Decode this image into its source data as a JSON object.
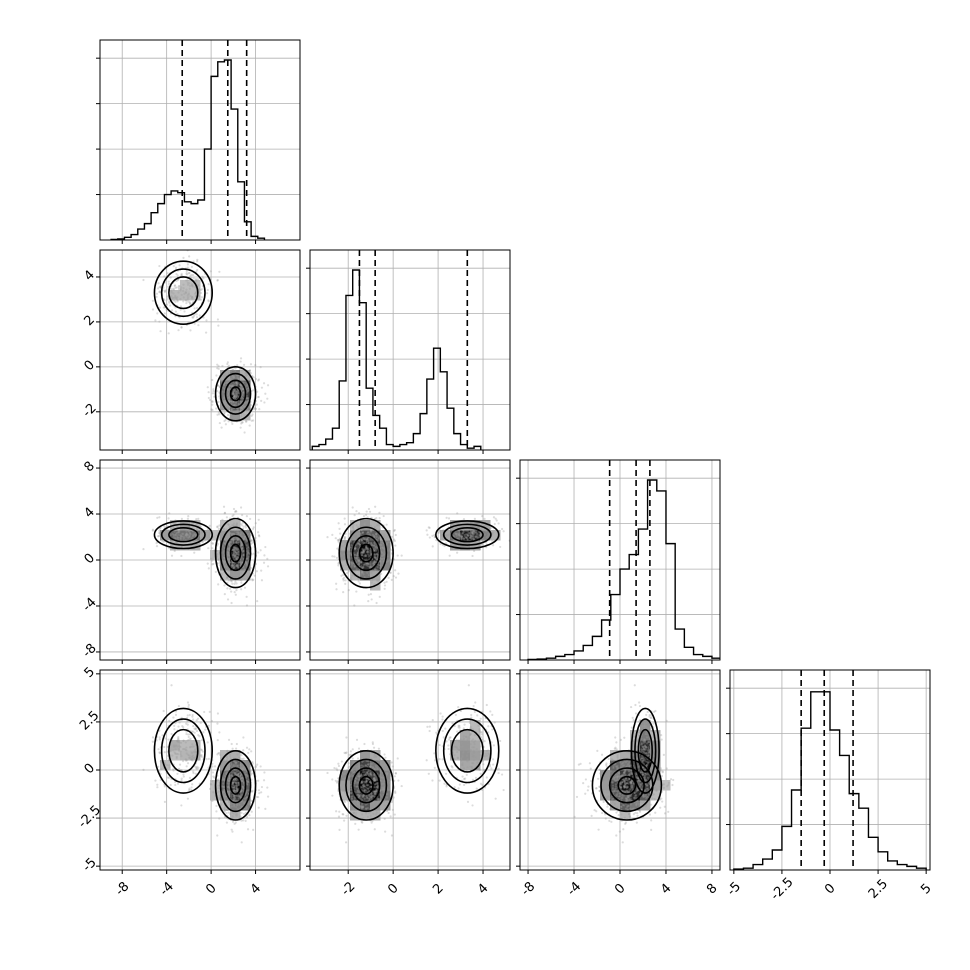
{
  "chart_data": {
    "type": "corner",
    "parameters": 4,
    "axes": [
      {
        "range": [
          -10,
          8
        ],
        "ticks": [
          -8,
          -4,
          0,
          4
        ]
      },
      {
        "range": [
          -3.7,
          5.2
        ],
        "ticks": [
          -2,
          0,
          2,
          4
        ]
      },
      {
        "range": [
          -8.7,
          8.7
        ],
        "ticks": [
          -8,
          -4,
          0,
          4,
          8
        ]
      },
      {
        "range": [
          -5.2,
          5.2
        ],
        "ticks": [
          -5.0,
          -2.5,
          0.0,
          2.5,
          5.0
        ]
      }
    ],
    "diagonal": [
      {
        "bin_start": -9,
        "bin_width": 0.6,
        "counts": [
          0.003,
          0.006,
          0.015,
          0.03,
          0.06,
          0.09,
          0.15,
          0.2,
          0.25,
          0.27,
          0.26,
          0.21,
          0.2,
          0.22,
          0.5,
          0.9,
          0.98,
          0.99,
          0.72,
          0.32,
          0.1,
          0.02,
          0.01
        ],
        "quantiles": [
          -2.6,
          1.5,
          3.2
        ],
        "ylim": [
          0,
          1.1
        ]
      },
      {
        "bin_start": -3.6,
        "bin_width": 0.3,
        "counts": [
          0.02,
          0.03,
          0.06,
          0.12,
          0.38,
          0.85,
          0.99,
          0.81,
          0.34,
          0.19,
          0.12,
          0.03,
          0.02,
          0.03,
          0.04,
          0.09,
          0.2,
          0.39,
          0.56,
          0.43,
          0.23,
          0.09,
          0.03,
          0.01,
          0.02
        ],
        "quantiles": [
          -1.5,
          -0.8,
          3.3
        ],
        "ylim": [
          0,
          1.1
        ]
      },
      {
        "bin_start": -8,
        "bin_width": 0.8,
        "counts": [
          0.003,
          0.005,
          0.01,
          0.02,
          0.03,
          0.05,
          0.08,
          0.13,
          0.22,
          0.36,
          0.5,
          0.58,
          0.72,
          0.99,
          0.93,
          0.64,
          0.17,
          0.07,
          0.03,
          0.02,
          0.01
        ],
        "quantiles": [
          -0.9,
          1.4,
          2.6
        ],
        "ylim": [
          0,
          1.1
        ]
      },
      {
        "bin_start": -5,
        "bin_width": 0.5,
        "counts": [
          0.005,
          0.01,
          0.03,
          0.06,
          0.11,
          0.24,
          0.44,
          0.78,
          0.98,
          0.98,
          0.77,
          0.63,
          0.42,
          0.34,
          0.18,
          0.1,
          0.05,
          0.03,
          0.02,
          0.01
        ],
        "quantiles": [
          -1.5,
          -0.3,
          1.2
        ],
        "ylim": [
          0,
          1.1
        ]
      }
    ],
    "components": [
      {
        "weight": 0.3,
        "mean": [
          -2.5,
          3.3,
          2.2,
          1.0
        ],
        "std": [
          1.3,
          0.7,
          0.6,
          1.1
        ]
      },
      {
        "weight": 0.7,
        "mean": [
          2.2,
          -1.2,
          0.6,
          -0.8
        ],
        "std": [
          0.9,
          0.6,
          1.5,
          0.9
        ]
      }
    ],
    "grid": true
  }
}
